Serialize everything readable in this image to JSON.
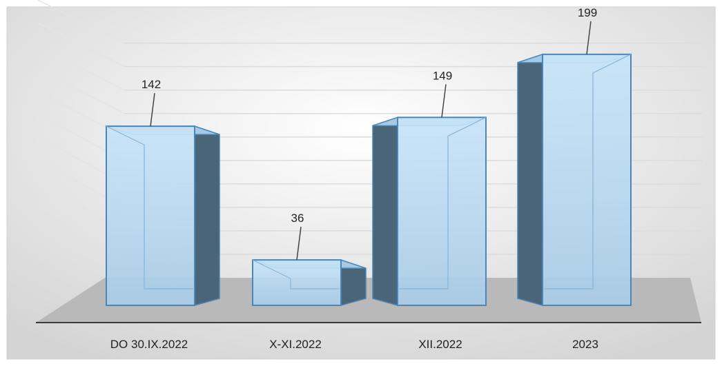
{
  "chart_data": {
    "type": "bar",
    "categories": [
      "DO 30.IX.2022",
      "X-XI.2022",
      "XII.2022",
      "2023"
    ],
    "values": [
      142,
      36,
      149,
      199
    ],
    "title": "",
    "xlabel": "",
    "ylabel": "",
    "ylim": [
      0,
      210
    ],
    "grid": true,
    "legend": "none",
    "data_labels": true,
    "style": "3d-column"
  },
  "colors": {
    "bar_front": "#bcdcf3",
    "bar_side": "#4a6577",
    "bar_edge": "#4a86b8",
    "floor": "#b9b9b9",
    "background_center": "#ffffff",
    "background_edge": "#d6d6d6"
  }
}
